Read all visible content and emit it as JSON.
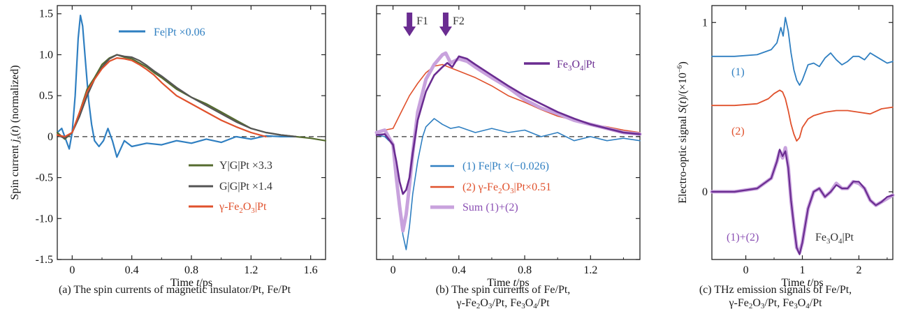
{
  "chart_data": [
    {
      "type": "line",
      "xlabel": "Time t/ps",
      "ylabel": "Spin current j_s(t) (normalized)",
      "xlim": [
        -0.1,
        1.7
      ],
      "ylim": [
        -1.5,
        1.6
      ],
      "xticks": [
        "0",
        "0.4",
        "0.8",
        "1.2",
        "1.6"
      ],
      "xtick_values": [
        0,
        0.4,
        0.8,
        1.2,
        1.6
      ],
      "yticks": [
        "-1.5",
        "-1.0",
        "-0.5",
        "0",
        "0.5",
        "1.0",
        "1.5"
      ],
      "ytick_values": [
        -1.5,
        -1.0,
        -0.5,
        0,
        0.5,
        1.0,
        1.5
      ],
      "zero_line": "dashed",
      "caption": "(a) The spin currents of magnetic insulator/Pt, Fe/Pt",
      "series": [
        {
          "name": "Fe|Pt ×0.06",
          "color": "#2f7fc1",
          "stroke": 2.2,
          "x": [
            -0.1,
            -0.07,
            -0.04,
            -0.02,
            0.0,
            0.02,
            0.04,
            0.055,
            0.07,
            0.09,
            0.11,
            0.13,
            0.15,
            0.18,
            0.21,
            0.24,
            0.27,
            0.3,
            0.35,
            0.4,
            0.5,
            0.6,
            0.7,
            0.8,
            0.9,
            1.0,
            1.1,
            1.2,
            1.3,
            1.4,
            1.5
          ],
          "y": [
            0.05,
            0.1,
            -0.05,
            -0.15,
            0.05,
            0.5,
            1.2,
            1.48,
            1.35,
            0.9,
            0.45,
            0.15,
            -0.05,
            -0.12,
            -0.05,
            0.1,
            -0.05,
            -0.25,
            -0.05,
            -0.12,
            -0.08,
            -0.1,
            -0.05,
            -0.08,
            -0.03,
            -0.07,
            0.0,
            -0.03,
            0.01,
            0.0,
            0.0
          ]
        },
        {
          "name": "Y|G|Pt ×3.3",
          "color": "#556b2f",
          "stroke": 2.2,
          "x": [
            -0.1,
            -0.05,
            0.0,
            0.05,
            0.1,
            0.15,
            0.2,
            0.25,
            0.3,
            0.35,
            0.4,
            0.45,
            0.5,
            0.55,
            0.6,
            0.7,
            0.8,
            0.9,
            1.0,
            1.1,
            1.2,
            1.3,
            1.4,
            1.5,
            1.6,
            1.7
          ],
          "y": [
            0.05,
            -0.03,
            0.05,
            0.3,
            0.58,
            0.72,
            0.88,
            0.96,
            1.0,
            0.97,
            0.95,
            0.9,
            0.85,
            0.78,
            0.72,
            0.58,
            0.48,
            0.4,
            0.3,
            0.2,
            0.1,
            0.05,
            0.02,
            0.0,
            -0.02,
            -0.05
          ]
        },
        {
          "name": "G|G|Pt ×1.4",
          "color": "#555555",
          "stroke": 2.2,
          "x": [
            -0.1,
            -0.05,
            0.0,
            0.05,
            0.1,
            0.15,
            0.2,
            0.25,
            0.3,
            0.35,
            0.4,
            0.45,
            0.5,
            0.55,
            0.6,
            0.7,
            0.8,
            0.9,
            1.0,
            1.1,
            1.2,
            1.3,
            1.4,
            1.5
          ],
          "y": [
            0.02,
            -0.02,
            0.05,
            0.25,
            0.5,
            0.7,
            0.85,
            0.95,
            1.0,
            0.98,
            0.97,
            0.93,
            0.87,
            0.8,
            0.74,
            0.6,
            0.48,
            0.38,
            0.28,
            0.18,
            0.1,
            0.05,
            0.02,
            0.0
          ]
        },
        {
          "name": "γ-Fe₂O₃|Pt",
          "color": "#e0512c",
          "stroke": 2.2,
          "x": [
            -0.1,
            -0.05,
            0.0,
            0.05,
            0.1,
            0.15,
            0.2,
            0.25,
            0.3,
            0.35,
            0.4,
            0.45,
            0.5,
            0.55,
            0.6,
            0.7,
            0.8,
            0.9,
            1.0,
            1.1,
            1.2,
            1.3
          ],
          "y": [
            0.02,
            0.0,
            0.05,
            0.3,
            0.55,
            0.7,
            0.83,
            0.92,
            0.96,
            0.95,
            0.93,
            0.88,
            0.82,
            0.75,
            0.66,
            0.5,
            0.4,
            0.3,
            0.2,
            0.12,
            0.05,
            0.0
          ]
        }
      ]
    },
    {
      "type": "line",
      "xlabel": "Time t/ps",
      "xlim": [
        -0.1,
        1.5
      ],
      "ylim": [
        -1.5,
        1.6
      ],
      "xticks": [
        "0",
        "0.4",
        "0.8",
        "1.2"
      ],
      "xtick_values": [
        0,
        0.4,
        0.8,
        1.2
      ],
      "zero_line": "dashed",
      "annotations": [
        {
          "label": "F1",
          "x": 0.1
        },
        {
          "label": "F2",
          "x": 0.32
        }
      ],
      "caption_line1": "(b) The spin currents of Fe/Pt,",
      "caption_line2_parts": [
        "γ-Fe",
        "2",
        "O",
        "3",
        "/Pt, Fe",
        "3",
        "O",
        "4",
        "/Pt"
      ],
      "series": [
        {
          "name": "(1) Fe|Pt  ×(−0.026)",
          "color": "#2f7fc1",
          "stroke": 1.6,
          "x": [
            -0.1,
            -0.05,
            0.0,
            0.02,
            0.04,
            0.06,
            0.08,
            0.1,
            0.12,
            0.15,
            0.18,
            0.2,
            0.25,
            0.3,
            0.35,
            0.4,
            0.5,
            0.6,
            0.7,
            0.8,
            0.9,
            1.0,
            1.1,
            1.2,
            1.3,
            1.4,
            1.5
          ],
          "y": [
            0.02,
            0.0,
            -0.1,
            -0.4,
            -0.85,
            -1.2,
            -1.38,
            -1.1,
            -0.7,
            -0.3,
            0.0,
            0.12,
            0.22,
            0.15,
            0.1,
            0.12,
            0.05,
            0.1,
            0.05,
            0.08,
            0.0,
            0.05,
            -0.05,
            0.0,
            -0.05,
            -0.02,
            -0.05
          ]
        },
        {
          "name": "(2) γ-Fe₂O₃|Pt×0.51",
          "color": "#e0512c",
          "stroke": 1.6,
          "x": [
            -0.1,
            -0.05,
            0.0,
            0.05,
            0.1,
            0.15,
            0.2,
            0.25,
            0.3,
            0.35,
            0.4,
            0.5,
            0.6,
            0.7,
            0.8,
            0.9,
            1.0,
            1.1,
            1.2,
            1.3,
            1.4,
            1.5
          ],
          "y": [
            0.05,
            0.08,
            0.1,
            0.3,
            0.5,
            0.65,
            0.78,
            0.86,
            0.88,
            0.84,
            0.8,
            0.72,
            0.62,
            0.5,
            0.42,
            0.33,
            0.25,
            0.2,
            0.15,
            0.12,
            0.08,
            0.05
          ]
        },
        {
          "name": "Sum (1)+(2)",
          "color": "#c8a2dd",
          "stroke": 5,
          "x": [
            -0.1,
            -0.05,
            0.0,
            0.02,
            0.04,
            0.06,
            0.08,
            0.1,
            0.12,
            0.15,
            0.2,
            0.25,
            0.3,
            0.32,
            0.35,
            0.4,
            0.45,
            0.5,
            0.6,
            0.7,
            0.8,
            0.9,
            1.0,
            1.1,
            1.2,
            1.3,
            1.4,
            1.5
          ],
          "y": [
            0.05,
            0.08,
            -0.1,
            -0.5,
            -0.85,
            -1.15,
            -0.95,
            -0.6,
            -0.2,
            0.3,
            0.7,
            0.88,
            1.0,
            1.02,
            0.9,
            0.95,
            0.92,
            0.85,
            0.72,
            0.6,
            0.45,
            0.35,
            0.28,
            0.2,
            0.15,
            0.1,
            0.05,
            0.03
          ]
        },
        {
          "name": "Fe₃O₄|Pt",
          "color": "#6a2c91",
          "stroke": 2.6,
          "x": [
            -0.1,
            -0.05,
            0.0,
            0.02,
            0.04,
            0.06,
            0.08,
            0.1,
            0.12,
            0.15,
            0.2,
            0.25,
            0.3,
            0.33,
            0.36,
            0.4,
            0.45,
            0.5,
            0.6,
            0.7,
            0.8,
            0.9,
            1.0,
            1.1,
            1.2,
            1.3,
            1.4,
            1.5
          ],
          "y": [
            0.02,
            0.03,
            -0.1,
            -0.3,
            -0.55,
            -0.7,
            -0.65,
            -0.5,
            -0.2,
            0.2,
            0.55,
            0.75,
            0.85,
            0.9,
            0.85,
            0.98,
            0.95,
            0.88,
            0.75,
            0.62,
            0.5,
            0.4,
            0.3,
            0.22,
            0.15,
            0.1,
            0.05,
            0.03
          ]
        }
      ]
    },
    {
      "type": "line",
      "xlabel": "Time t/ps",
      "ylabel": "Electro-optic signal S(t)/(×10⁻⁶)",
      "xlim": [
        -0.6,
        2.6
      ],
      "ylim": [
        -0.4,
        1.1
      ],
      "xticks": [
        "0",
        "1",
        "2"
      ],
      "xtick_values": [
        0,
        1,
        2
      ],
      "yticks": [
        "0",
        "1"
      ],
      "ytick_values": [
        0,
        1
      ],
      "annotations": [
        {
          "label": "(1)"
        },
        {
          "label": "(2)"
        },
        {
          "label": "(1)+(2)"
        },
        {
          "label": "Fe₃O₄|Pt"
        }
      ],
      "caption_line1": "(c) THz emission signals of Fe/Pt,",
      "caption_line2_parts": [
        "γ-Fe",
        "2",
        "O",
        "3",
        "/Pt, Fe",
        "3",
        "O",
        "4",
        "/Pt"
      ],
      "series": [
        {
          "name": "(1)",
          "color": "#2f7fc1",
          "stroke": 1.8,
          "x": [
            -0.6,
            -0.2,
            0.2,
            0.45,
            0.55,
            0.62,
            0.66,
            0.7,
            0.75,
            0.8,
            0.85,
            0.9,
            0.95,
            1.0,
            1.1,
            1.2,
            1.3,
            1.4,
            1.5,
            1.6,
            1.7,
            1.8,
            1.9,
            2.0,
            2.1,
            2.2,
            2.3,
            2.4,
            2.5,
            2.6
          ],
          "y": [
            0.8,
            0.8,
            0.81,
            0.84,
            0.88,
            0.97,
            0.92,
            1.03,
            0.95,
            0.82,
            0.72,
            0.66,
            0.63,
            0.66,
            0.75,
            0.76,
            0.74,
            0.79,
            0.82,
            0.78,
            0.75,
            0.77,
            0.8,
            0.8,
            0.78,
            0.82,
            0.8,
            0.78,
            0.76,
            0.77
          ]
        },
        {
          "name": "(2)",
          "color": "#e0512c",
          "stroke": 1.8,
          "x": [
            -0.6,
            -0.2,
            0.2,
            0.4,
            0.5,
            0.6,
            0.65,
            0.7,
            0.75,
            0.8,
            0.85,
            0.9,
            0.95,
            1.0,
            1.1,
            1.2,
            1.4,
            1.6,
            1.8,
            2.0,
            2.2,
            2.4,
            2.6
          ],
          "y": [
            0.51,
            0.51,
            0.52,
            0.55,
            0.58,
            0.6,
            0.59,
            0.55,
            0.48,
            0.4,
            0.34,
            0.3,
            0.32,
            0.38,
            0.43,
            0.45,
            0.47,
            0.48,
            0.48,
            0.47,
            0.46,
            0.49,
            0.5
          ]
        },
        {
          "name": "(1)+(2)",
          "color": "#c8a2dd",
          "stroke": 5,
          "x": [
            -0.6,
            -0.2,
            0.2,
            0.45,
            0.55,
            0.6,
            0.65,
            0.7,
            0.75,
            0.8,
            0.85,
            0.9,
            0.95,
            1.0,
            1.1,
            1.2,
            1.3,
            1.4,
            1.5,
            1.6,
            1.7,
            1.8,
            1.9,
            2.0,
            2.1,
            2.2,
            2.3,
            2.4,
            2.5,
            2.6
          ],
          "y": [
            0.0,
            0.0,
            0.02,
            0.08,
            0.18,
            0.24,
            0.2,
            0.26,
            0.15,
            -0.05,
            -0.2,
            -0.33,
            -0.36,
            -0.3,
            -0.1,
            0.0,
            0.02,
            -0.03,
            0.0,
            0.05,
            0.02,
            0.02,
            0.06,
            0.05,
            0.02,
            -0.05,
            -0.08,
            -0.06,
            -0.04,
            -0.02
          ]
        },
        {
          "name": "Fe₃O₄|Pt",
          "color": "#6a2c91",
          "stroke": 2.2,
          "x": [
            -0.6,
            -0.2,
            0.2,
            0.45,
            0.55,
            0.6,
            0.65,
            0.7,
            0.75,
            0.8,
            0.85,
            0.9,
            0.95,
            1.0,
            1.1,
            1.2,
            1.3,
            1.4,
            1.5,
            1.6,
            1.7,
            1.8,
            1.9,
            2.0,
            2.1,
            2.2,
            2.3,
            2.4,
            2.5,
            2.6
          ],
          "y": [
            0.0,
            0.0,
            0.02,
            0.08,
            0.18,
            0.25,
            0.21,
            0.24,
            0.14,
            -0.05,
            -0.2,
            -0.33,
            -0.37,
            -0.3,
            -0.1,
            0.0,
            0.02,
            -0.03,
            0.0,
            0.04,
            0.02,
            0.02,
            0.06,
            0.06,
            0.02,
            -0.05,
            -0.08,
            -0.06,
            -0.03,
            -0.02
          ]
        }
      ]
    }
  ],
  "caption_a": "(a) The spin currents of magnetic insulator/Pt, Fe/Pt"
}
